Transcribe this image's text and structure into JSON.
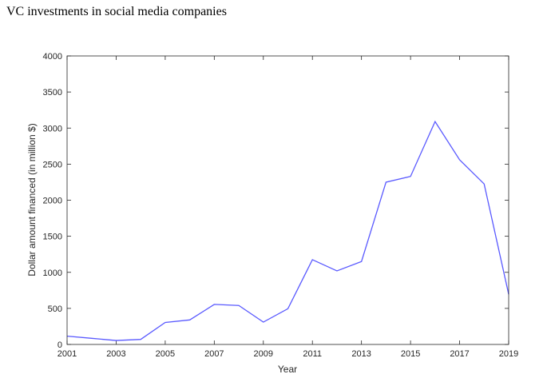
{
  "chart_data": {
    "type": "line",
    "title": "VC investments in social media companies",
    "xlabel": "Year",
    "ylabel": "Dollar amount financed (in million $)",
    "xlim": [
      2001,
      2019
    ],
    "ylim": [
      0,
      4000
    ],
    "xticks": [
      2001,
      2003,
      2005,
      2007,
      2009,
      2011,
      2013,
      2015,
      2017,
      2019
    ],
    "yticks": [
      0,
      500,
      1000,
      1500,
      2000,
      2500,
      3000,
      3500,
      4000
    ],
    "grid": false,
    "series": [
      {
        "color": "#5a5aff",
        "x": [
          2001,
          2002,
          2003,
          2004,
          2005,
          2006,
          2007,
          2008,
          2009,
          2010,
          2011,
          2012,
          2013,
          2014,
          2015,
          2016,
          2017,
          2018,
          2019
        ],
        "y": [
          115,
          85,
          55,
          70,
          305,
          340,
          555,
          540,
          310,
          495,
          1175,
          1020,
          1150,
          2250,
          2330,
          3090,
          2560,
          2225,
          695
        ]
      }
    ]
  }
}
